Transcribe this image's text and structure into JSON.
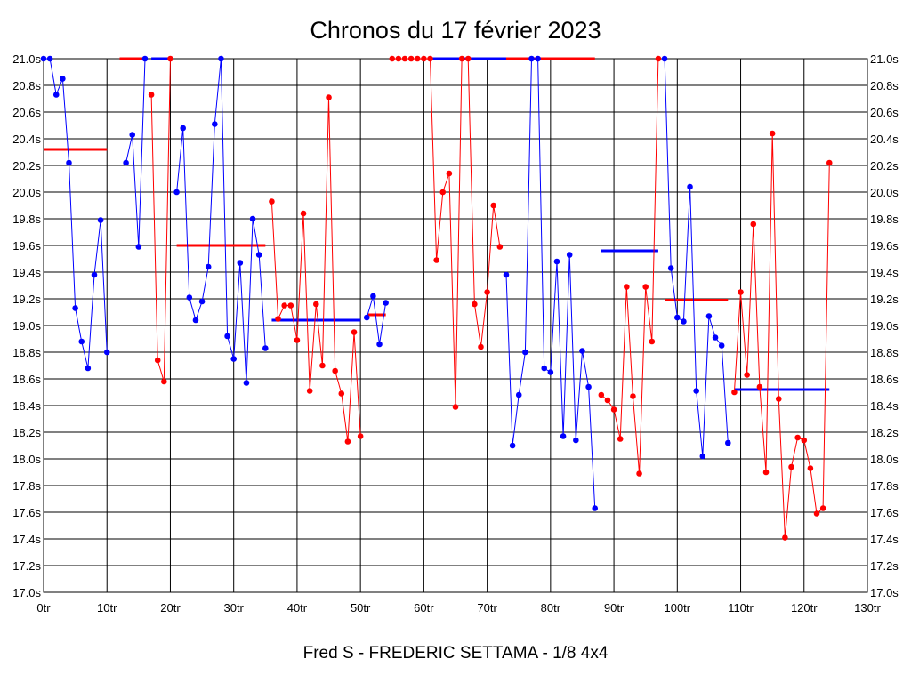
{
  "chart_data": {
    "type": "line",
    "title": "Chronos du 17 février 2023",
    "subtitle": "Fred S - FREDERIC SETTAMA - 1/8 4x4",
    "xlabel": "",
    "ylabel": "",
    "xlim": [
      0,
      130
    ],
    "ylim": [
      17.0,
      21.0
    ],
    "grid": true,
    "x_ticks": [
      "0tr",
      "10tr",
      "20tr",
      "30tr",
      "40tr",
      "50tr",
      "60tr",
      "70tr",
      "80tr",
      "90tr",
      "100tr",
      "110tr",
      "120tr",
      "130tr"
    ],
    "y_ticks": [
      "17.0s",
      "17.2s",
      "17.4s",
      "17.6s",
      "17.8s",
      "18.0s",
      "18.2s",
      "18.4s",
      "18.6s",
      "18.8s",
      "19.0s",
      "19.2s",
      "19.4s",
      "19.6s",
      "19.8s",
      "20.0s",
      "20.2s",
      "20.4s",
      "20.6s",
      "20.8s",
      "21.0s"
    ],
    "colors": {
      "blue": "#0000ff",
      "red": "#ff0000"
    },
    "series": [
      {
        "color": "blue",
        "points": [
          [
            0,
            21.0
          ],
          [
            1,
            21.0
          ],
          [
            2,
            20.73
          ],
          [
            3,
            20.85
          ],
          [
            4,
            20.22
          ],
          [
            5,
            19.13
          ],
          [
            6,
            18.88
          ],
          [
            7,
            18.68
          ],
          [
            8,
            19.38
          ],
          [
            9,
            19.79
          ],
          [
            10,
            18.8
          ]
        ]
      },
      {
        "color": "blue",
        "points": [
          [
            13,
            20.22
          ],
          [
            14,
            20.43
          ],
          [
            15,
            19.59
          ],
          [
            16,
            21.0
          ]
        ]
      },
      {
        "color": "red",
        "points": [
          [
            17,
            20.73
          ],
          [
            18,
            18.74
          ],
          [
            19,
            18.58
          ],
          [
            20,
            21.0
          ]
        ]
      },
      {
        "color": "blue",
        "points": [
          [
            21,
            20.0
          ],
          [
            22,
            20.48
          ],
          [
            23,
            19.21
          ],
          [
            24,
            19.04
          ],
          [
            25,
            19.18
          ],
          [
            26,
            19.44
          ],
          [
            27,
            20.51
          ],
          [
            28,
            21.0
          ],
          [
            29,
            18.92
          ],
          [
            30,
            18.75
          ],
          [
            31,
            19.47
          ],
          [
            32,
            18.57
          ],
          [
            33,
            19.8
          ],
          [
            34,
            19.53
          ],
          [
            35,
            18.83
          ]
        ]
      },
      {
        "color": "red",
        "points": [
          [
            36,
            19.93
          ],
          [
            37,
            19.05
          ],
          [
            38,
            19.15
          ],
          [
            39,
            19.15
          ],
          [
            40,
            18.89
          ],
          [
            41,
            19.84
          ],
          [
            42,
            18.51
          ],
          [
            43,
            19.16
          ],
          [
            44,
            18.7
          ],
          [
            45,
            20.71
          ],
          [
            46,
            18.66
          ],
          [
            47,
            18.49
          ],
          [
            48,
            18.13
          ],
          [
            49,
            18.95
          ],
          [
            50,
            18.17
          ]
        ]
      },
      {
        "color": "blue",
        "points": [
          [
            51,
            19.06
          ],
          [
            52,
            19.22
          ],
          [
            53,
            18.86
          ],
          [
            54,
            19.17
          ]
        ]
      },
      {
        "color": "red",
        "points": [
          [
            55,
            21.0
          ],
          [
            56,
            21.0
          ],
          [
            57,
            21.0
          ],
          [
            58,
            21.0
          ],
          [
            59,
            21.0
          ],
          [
            60,
            21.0
          ],
          [
            61,
            21.0
          ],
          [
            62,
            19.49
          ],
          [
            63,
            20.0
          ],
          [
            64,
            20.14
          ],
          [
            65,
            18.39
          ],
          [
            66,
            21.0
          ],
          [
            67,
            21.0
          ],
          [
            68,
            19.16
          ],
          [
            69,
            18.84
          ],
          [
            70,
            19.25
          ],
          [
            71,
            19.9
          ],
          [
            72,
            19.59
          ]
        ]
      },
      {
        "color": "blue",
        "points": [
          [
            73,
            19.38
          ],
          [
            74,
            18.1
          ],
          [
            75,
            18.48
          ],
          [
            76,
            18.8
          ],
          [
            77,
            21.0
          ],
          [
            78,
            21.0
          ],
          [
            79,
            18.68
          ],
          [
            80,
            18.65
          ],
          [
            81,
            19.48
          ],
          [
            82,
            18.17
          ],
          [
            83,
            19.53
          ],
          [
            84,
            18.14
          ],
          [
            85,
            18.81
          ],
          [
            86,
            18.54
          ],
          [
            87,
            17.63
          ]
        ]
      },
      {
        "color": "red",
        "points": [
          [
            88,
            18.48
          ],
          [
            89,
            18.44
          ],
          [
            90,
            18.37
          ],
          [
            91,
            18.15
          ],
          [
            92,
            19.29
          ],
          [
            93,
            18.47
          ],
          [
            94,
            17.89
          ],
          [
            95,
            19.29
          ],
          [
            96,
            18.88
          ],
          [
            97,
            21.0
          ]
        ]
      },
      {
        "color": "blue",
        "points": [
          [
            98,
            21.0
          ],
          [
            99,
            19.43
          ],
          [
            100,
            19.06
          ],
          [
            101,
            19.03
          ],
          [
            102,
            20.04
          ],
          [
            103,
            18.51
          ],
          [
            104,
            18.02
          ],
          [
            105,
            19.07
          ],
          [
            106,
            18.91
          ],
          [
            107,
            18.85
          ],
          [
            108,
            18.12
          ]
        ]
      },
      {
        "color": "red",
        "points": [
          [
            109,
            18.5
          ],
          [
            110,
            19.25
          ],
          [
            111,
            18.63
          ],
          [
            112,
            19.76
          ],
          [
            113,
            18.54
          ],
          [
            114,
            17.9
          ],
          [
            115,
            20.44
          ],
          [
            116,
            18.45
          ],
          [
            117,
            17.41
          ],
          [
            118,
            17.94
          ],
          [
            119,
            18.16
          ],
          [
            120,
            18.14
          ],
          [
            121,
            17.93
          ],
          [
            122,
            17.59
          ],
          [
            123,
            17.63
          ],
          [
            124,
            20.22
          ]
        ]
      }
    ],
    "flat_tops": [
      {
        "color": "red",
        "x": [
          12,
          16
        ],
        "y": 21.0
      },
      {
        "color": "blue",
        "x": [
          17,
          20
        ],
        "y": 21.0
      },
      {
        "color": "blue",
        "x": [
          61,
          73
        ],
        "y": 21.0
      },
      {
        "color": "red",
        "x": [
          73,
          87
        ],
        "y": 21.0
      }
    ],
    "averages": [
      {
        "color": "red",
        "x": [
          0,
          10
        ],
        "y": 20.32
      },
      {
        "color": "red",
        "x": [
          21,
          35
        ],
        "y": 19.6
      },
      {
        "color": "blue",
        "x": [
          36,
          50
        ],
        "y": 19.04
      },
      {
        "color": "red",
        "x": [
          51,
          54
        ],
        "y": 19.08
      },
      {
        "color": "blue",
        "x": [
          88,
          97
        ],
        "y": 19.56
      },
      {
        "color": "red",
        "x": [
          98,
          108
        ],
        "y": 19.19
      },
      {
        "color": "blue",
        "x": [
          109,
          124
        ],
        "y": 18.52
      }
    ]
  }
}
